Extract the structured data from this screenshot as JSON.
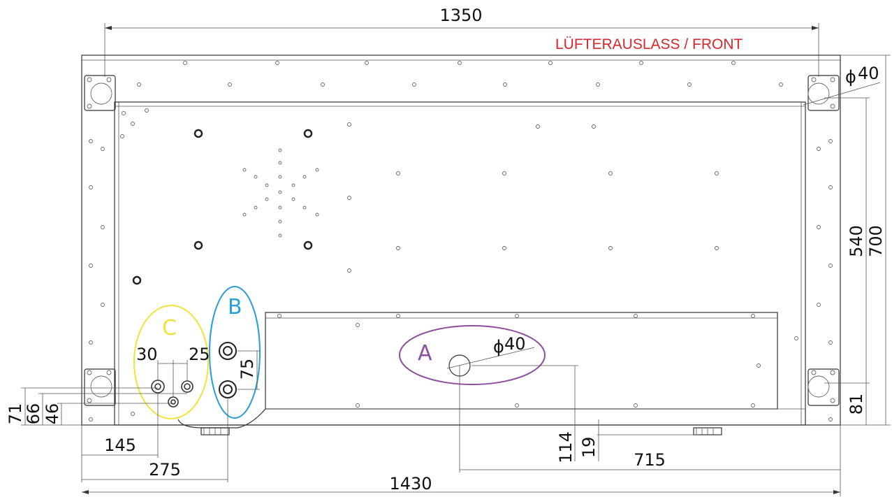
{
  "title": "LÜFTERAUSLASS / FRONT",
  "colors": {
    "title": "#d9262c",
    "callout_a": "#8e4d9e",
    "callout_b": "#2a9fd6",
    "callout_c": "#f2e23a",
    "line": "#333333"
  },
  "callouts": {
    "a": "A",
    "b": "B",
    "c": "C"
  },
  "dimensions": {
    "overall_top": "1350",
    "overall_bottom": "1430",
    "height_total": "700",
    "height_inner": "540",
    "corner_hole_dia": "40",
    "hole_a_dia": "40",
    "diameter_symbol": "ϕ",
    "right_bottom": "81",
    "a_from_right": "715",
    "a_height": "114",
    "foot_offset": "19",
    "c_spacing_left": "30",
    "c_spacing_right": "25",
    "b_spacing": "75",
    "c_h71": "71",
    "c_h66": "66",
    "c_h46": "46",
    "c_from_left": "145",
    "b_from_left": "275"
  }
}
